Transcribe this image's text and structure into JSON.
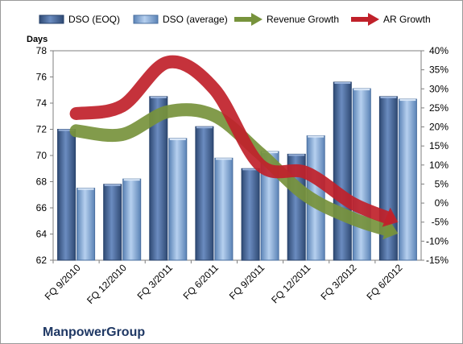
{
  "chart_data": {
    "type": "bar",
    "ylabel": "Days",
    "brand": "ManpowerGroup",
    "categories": [
      "FQ 9/2010",
      "FQ 12/2010",
      "FQ 3/2011",
      "FQ 6/2011",
      "FQ 9/2011",
      "FQ 12/2011",
      "FQ 3/2012",
      "FQ 6/2012"
    ],
    "ylim": [
      62,
      78
    ],
    "yticks": [
      62,
      64,
      66,
      68,
      70,
      72,
      74,
      76,
      78
    ],
    "y2lim": [
      -15,
      40
    ],
    "y2ticks": [
      "-15%",
      "-10%",
      "-5%",
      "0%",
      "5%",
      "10%",
      "15%",
      "20%",
      "25%",
      "30%",
      "35%",
      "40%"
    ],
    "grid": false,
    "legend_position": "top",
    "series": [
      {
        "name": "DSO (EOQ)",
        "kind": "bar",
        "axis": "left",
        "color": "#4f6fa0",
        "values": [
          72.0,
          67.8,
          74.5,
          72.2,
          69.0,
          70.1,
          75.6,
          74.5
        ]
      },
      {
        "name": "DSO (average)",
        "kind": "bar",
        "axis": "left",
        "color": "#8db3e2",
        "values": [
          67.5,
          68.2,
          71.3,
          69.8,
          70.3,
          71.5,
          75.1,
          74.3
        ]
      },
      {
        "name": "Revenue Growth",
        "kind": "arrow",
        "axis": "right",
        "color": "#77933c",
        "values": [
          19,
          18,
          24,
          23,
          13,
          2,
          -4,
          -8
        ]
      },
      {
        "name": "AR Growth",
        "kind": "arrow",
        "axis": "right",
        "color": "#c0212a",
        "values": [
          23.5,
          25.5,
          37,
          30,
          10,
          8,
          0,
          -5
        ]
      }
    ]
  }
}
